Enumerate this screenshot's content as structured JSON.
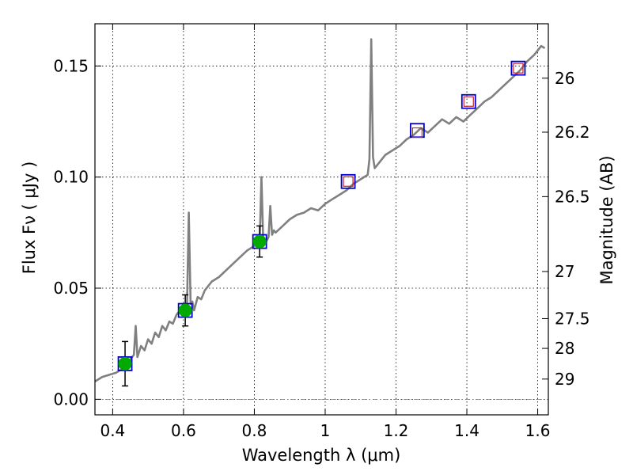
{
  "chart_data": {
    "type": "line",
    "xlabel": "Wavelength  λ (μm)",
    "ylabel": "Flux  Fν  ( μJy )",
    "ylabel_right": "Magnitude (AB)",
    "xlim": [
      0.35,
      1.63
    ],
    "ylim": [
      -0.007,
      0.169
    ],
    "grid": true,
    "x_ticks": [
      0.4,
      0.6,
      0.8,
      1.0,
      1.2,
      1.4,
      1.6
    ],
    "x_tick_labels": [
      "0.4",
      "0.6",
      "0.8",
      "1",
      "1.2",
      "1.4",
      "1.6"
    ],
    "y_ticks": [
      0.0,
      0.05,
      0.1,
      0.15
    ],
    "y_tick_labels": [
      "0.00",
      "0.05",
      "0.10",
      "0.15"
    ],
    "right_axis_ticks": [
      {
        "label": "26",
        "flux": 0.1445
      },
      {
        "label": "26.2",
        "flux": 0.1202
      },
      {
        "label": "26.5",
        "flux": 0.0912
      },
      {
        "label": "27",
        "flux": 0.0575
      },
      {
        "label": "27.5",
        "flux": 0.0363
      },
      {
        "label": "28",
        "flux": 0.0229
      },
      {
        "label": "29",
        "flux": 0.0091
      }
    ],
    "zero_line": 0.0,
    "spectrum": {
      "color": "#808080",
      "x": [
        0.35,
        0.37,
        0.39,
        0.41,
        0.43,
        0.44,
        0.45,
        0.46,
        0.465,
        0.47,
        0.48,
        0.49,
        0.5,
        0.51,
        0.52,
        0.53,
        0.54,
        0.55,
        0.56,
        0.57,
        0.58,
        0.59,
        0.6,
        0.61,
        0.615,
        0.62,
        0.625,
        0.63,
        0.64,
        0.65,
        0.66,
        0.68,
        0.7,
        0.72,
        0.74,
        0.76,
        0.78,
        0.8,
        0.81,
        0.815,
        0.82,
        0.825,
        0.83,
        0.84,
        0.845,
        0.85,
        0.855,
        0.86,
        0.88,
        0.9,
        0.92,
        0.94,
        0.96,
        0.98,
        1.0,
        1.02,
        1.04,
        1.06,
        1.08,
        1.1,
        1.12,
        1.125,
        1.13,
        1.135,
        1.14,
        1.15,
        1.17,
        1.19,
        1.21,
        1.23,
        1.25,
        1.27,
        1.29,
        1.31,
        1.33,
        1.35,
        1.37,
        1.39,
        1.41,
        1.43,
        1.45,
        1.47,
        1.49,
        1.51,
        1.53,
        1.55,
        1.57,
        1.59,
        1.6,
        1.61,
        1.62
      ],
      "y": [
        0.008,
        0.01,
        0.011,
        0.012,
        0.014,
        0.016,
        0.018,
        0.02,
        0.033,
        0.019,
        0.024,
        0.022,
        0.027,
        0.025,
        0.03,
        0.028,
        0.033,
        0.031,
        0.035,
        0.034,
        0.038,
        0.04,
        0.042,
        0.043,
        0.084,
        0.043,
        0.044,
        0.04,
        0.046,
        0.045,
        0.049,
        0.053,
        0.055,
        0.058,
        0.061,
        0.064,
        0.067,
        0.069,
        0.07,
        0.071,
        0.1,
        0.072,
        0.07,
        0.073,
        0.087,
        0.074,
        0.076,
        0.075,
        0.078,
        0.081,
        0.083,
        0.084,
        0.086,
        0.085,
        0.088,
        0.09,
        0.092,
        0.094,
        0.097,
        0.099,
        0.101,
        0.108,
        0.162,
        0.109,
        0.104,
        0.106,
        0.11,
        0.112,
        0.114,
        0.117,
        0.119,
        0.122,
        0.12,
        0.123,
        0.126,
        0.124,
        0.127,
        0.125,
        0.128,
        0.131,
        0.134,
        0.136,
        0.139,
        0.142,
        0.145,
        0.148,
        0.152,
        0.155,
        0.157,
        0.159,
        0.158
      ]
    },
    "photometry_filled": {
      "color": "#00aa00",
      "x": [
        0.435,
        0.605,
        0.815
      ],
      "y": [
        0.016,
        0.04,
        0.071
      ],
      "yerr": [
        0.01,
        0.007,
        0.007
      ]
    },
    "photometry_open": {
      "color": "#cc2222",
      "x": [
        1.065,
        1.26,
        1.405,
        1.545
      ],
      "y": [
        0.098,
        0.12,
        0.134,
        0.149
      ]
    },
    "model_points": {
      "color": "#0000cc",
      "x": [
        0.435,
        0.605,
        0.815,
        1.065,
        1.26,
        1.405,
        1.545
      ],
      "y": [
        0.016,
        0.04,
        0.071,
        0.098,
        0.121,
        0.134,
        0.149
      ]
    }
  }
}
